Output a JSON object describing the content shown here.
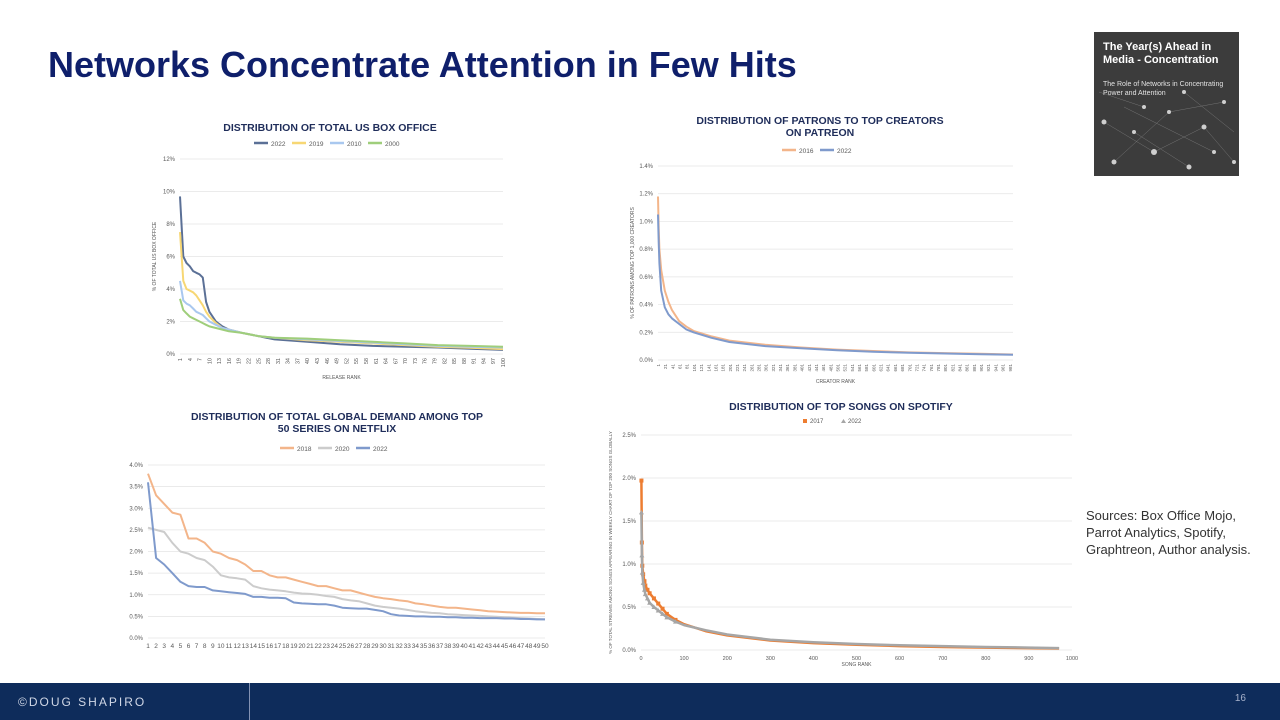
{
  "slide": {
    "title": "Networks Concentrate Attention in Few Hits",
    "sources": "Sources:  Box Office Mojo, Parrot Analytics, Spotify, Graphtreon, Author analysis.",
    "footer_brand": "©DOUG SHAPIRO",
    "page_number": "16"
  },
  "cover": {
    "title": "The Year(s) Ahead in Media - Concentration",
    "subtitle": "The Role of Networks in Concentrating Power and Attention"
  },
  "colors": {
    "title": "#0f1f6b",
    "chart_title": "#1f2d5a",
    "axis_text": "#595959",
    "grid": "#e4e4e4",
    "footer": "#0e2c5b",
    "series_2022": "#7f9acc",
    "series_2022_dark": "#5b7096",
    "series_2019": "#f7d774",
    "series_2010": "#a9c8ef",
    "series_2000": "#9fce7b",
    "series_2016": "#f3b58a",
    "series_2018": "#f3b58a",
    "series_2020": "#cccccc",
    "series_2017": "#ed7d31",
    "series_2022_gray": "#a6a6a6"
  },
  "chart_data": [
    {
      "type": "line",
      "title": "DISTRIBUTION OF TOTAL US BOX OFFICE",
      "xlabel": "RELEASE RANK",
      "ylabel": "% OF TOTAL US BOX OFFICE",
      "ylim": [
        0,
        12
      ],
      "yticks": [
        "0%",
        "2%",
        "4%",
        "6%",
        "8%",
        "10%",
        "12%"
      ],
      "xticks": [
        "1",
        "4",
        "7",
        "10",
        "13",
        "16",
        "19",
        "22",
        "25",
        "28",
        "31",
        "34",
        "37",
        "40",
        "43",
        "46",
        "49",
        "52",
        "55",
        "58",
        "61",
        "64",
        "67",
        "70",
        "73",
        "76",
        "79",
        "82",
        "85",
        "88",
        "91",
        "94",
        "97",
        "100"
      ],
      "xlim": [
        1,
        100
      ],
      "legend_position": "top",
      "series": [
        {
          "name": "2022",
          "x": [
            1,
            2,
            3,
            4,
            5,
            6,
            7,
            8,
            9,
            10,
            12,
            14,
            16,
            20,
            25,
            30,
            40,
            50,
            60,
            70,
            80,
            90,
            100
          ],
          "values": [
            9.7,
            6.0,
            5.6,
            5.4,
            5.1,
            5.0,
            4.9,
            4.7,
            3.2,
            2.6,
            2.0,
            1.7,
            1.5,
            1.3,
            1.1,
            0.9,
            0.75,
            0.6,
            0.5,
            0.45,
            0.4,
            0.32,
            0.25
          ]
        },
        {
          "name": "2019",
          "x": [
            1,
            2,
            3,
            4,
            5,
            6,
            7,
            8,
            9,
            10,
            12,
            14,
            16,
            20,
            25,
            30,
            40,
            50,
            60,
            70,
            80,
            90,
            100
          ],
          "values": [
            7.5,
            4.5,
            4.0,
            3.9,
            3.8,
            3.6,
            3.3,
            3.0,
            2.6,
            2.3,
            1.9,
            1.6,
            1.5,
            1.3,
            1.1,
            1.0,
            0.85,
            0.75,
            0.65,
            0.55,
            0.45,
            0.38,
            0.3
          ]
        },
        {
          "name": "2010",
          "x": [
            1,
            2,
            3,
            4,
            5,
            6,
            7,
            8,
            9,
            10,
            12,
            14,
            16,
            20,
            25,
            30,
            40,
            50,
            60,
            70,
            80,
            90,
            100
          ],
          "values": [
            4.5,
            3.3,
            3.1,
            3.0,
            2.8,
            2.6,
            2.5,
            2.4,
            2.2,
            2.0,
            1.8,
            1.6,
            1.5,
            1.3,
            1.1,
            1.0,
            0.9,
            0.8,
            0.7,
            0.6,
            0.5,
            0.45,
            0.4
          ]
        },
        {
          "name": "2000",
          "x": [
            1,
            2,
            3,
            4,
            5,
            6,
            7,
            8,
            9,
            10,
            12,
            14,
            16,
            20,
            25,
            30,
            40,
            50,
            60,
            70,
            80,
            90,
            100
          ],
          "values": [
            3.4,
            2.7,
            2.5,
            2.3,
            2.2,
            2.1,
            2.0,
            1.9,
            1.8,
            1.7,
            1.6,
            1.5,
            1.4,
            1.3,
            1.1,
            1.0,
            0.95,
            0.85,
            0.75,
            0.65,
            0.55,
            0.5,
            0.45
          ]
        }
      ]
    },
    {
      "type": "line",
      "title": "DISTRIBUTION OF PATRONS TO TOP CREATORS ON PATREON",
      "xlabel": "CREATOR RANK",
      "ylabel": "% OF PATRONS AMONG TOP 1,000 CREATORS",
      "ylim": [
        0,
        1.4
      ],
      "yticks": [
        "0.0%",
        "0.2%",
        "0.4%",
        "0.6%",
        "0.8%",
        "1.0%",
        "1.2%",
        "1.4%"
      ],
      "xticks": [
        "1",
        "21",
        "41",
        "61",
        "81",
        "101",
        "121",
        "141",
        "161",
        "181",
        "201",
        "221",
        "241",
        "261",
        "281",
        "301",
        "321",
        "341",
        "361",
        "381",
        "401",
        "421",
        "441",
        "461",
        "481",
        "501",
        "521",
        "541",
        "561",
        "581",
        "601",
        "621",
        "641",
        "661",
        "681",
        "701",
        "721",
        "741",
        "761",
        "781",
        "801",
        "821",
        "841",
        "861",
        "881",
        "901",
        "921",
        "941",
        "961",
        "981"
      ],
      "xlim": [
        1,
        990
      ],
      "legend_position": "top",
      "series": [
        {
          "name": "2016",
          "x": [
            1,
            3,
            5,
            10,
            20,
            30,
            40,
            60,
            80,
            100,
            150,
            200,
            300,
            400,
            500,
            600,
            700,
            800,
            900,
            990
          ],
          "values": [
            1.18,
            0.95,
            0.8,
            0.65,
            0.5,
            0.42,
            0.36,
            0.28,
            0.24,
            0.21,
            0.17,
            0.14,
            0.11,
            0.09,
            0.075,
            0.065,
            0.055,
            0.05,
            0.045,
            0.04
          ]
        },
        {
          "name": "2022",
          "x": [
            1,
            3,
            5,
            10,
            20,
            30,
            40,
            60,
            80,
            100,
            150,
            200,
            300,
            400,
            500,
            600,
            700,
            800,
            900,
            990
          ],
          "values": [
            1.05,
            0.85,
            0.7,
            0.5,
            0.38,
            0.33,
            0.3,
            0.26,
            0.22,
            0.2,
            0.16,
            0.13,
            0.1,
            0.085,
            0.07,
            0.06,
            0.052,
            0.047,
            0.042,
            0.038
          ]
        }
      ]
    },
    {
      "type": "line",
      "title": "DISTRIBUTION OF TOTAL GLOBAL DEMAND AMONG TOP 50 SERIES ON NETFLIX",
      "xlabel": "",
      "ylabel": "",
      "ylim": [
        0,
        4
      ],
      "yticks": [
        "0.0%",
        "0.5%",
        "1.0%",
        "1.5%",
        "2.0%",
        "2.5%",
        "3.0%",
        "3.5%",
        "4.0%"
      ],
      "xticks": [
        "1",
        "2",
        "3",
        "4",
        "5",
        "6",
        "7",
        "8",
        "9",
        "10",
        "11",
        "12",
        "13",
        "14",
        "15",
        "16",
        "17",
        "18",
        "19",
        "20",
        "21",
        "22",
        "23",
        "24",
        "25",
        "26",
        "27",
        "28",
        "29",
        "30",
        "31",
        "32",
        "33",
        "34",
        "35",
        "36",
        "37",
        "38",
        "39",
        "40",
        "41",
        "42",
        "43",
        "44",
        "45",
        "46",
        "47",
        "48",
        "49",
        "50"
      ],
      "xlim": [
        1,
        50
      ],
      "legend_position": "top",
      "series": [
        {
          "name": "2018",
          "x": [
            1,
            2,
            3,
            4,
            5,
            6,
            7,
            8,
            9,
            10,
            11,
            12,
            13,
            14,
            15,
            16,
            17,
            18,
            19,
            20,
            21,
            22,
            23,
            24,
            25,
            26,
            27,
            28,
            29,
            30,
            31,
            32,
            33,
            34,
            35,
            36,
            37,
            38,
            39,
            40,
            41,
            42,
            43,
            44,
            45,
            46,
            47,
            48,
            49,
            50
          ],
          "values": [
            3.8,
            3.3,
            3.1,
            2.9,
            2.85,
            2.3,
            2.3,
            2.2,
            2.0,
            1.95,
            1.85,
            1.8,
            1.7,
            1.55,
            1.55,
            1.45,
            1.4,
            1.4,
            1.35,
            1.3,
            1.25,
            1.2,
            1.2,
            1.15,
            1.1,
            1.1,
            1.05,
            1.0,
            0.95,
            0.92,
            0.9,
            0.87,
            0.85,
            0.8,
            0.78,
            0.75,
            0.72,
            0.7,
            0.7,
            0.68,
            0.66,
            0.64,
            0.62,
            0.61,
            0.6,
            0.59,
            0.58,
            0.58,
            0.57,
            0.57
          ]
        },
        {
          "name": "2020",
          "x": [
            1,
            2,
            3,
            4,
            5,
            6,
            7,
            8,
            9,
            10,
            11,
            12,
            13,
            14,
            15,
            16,
            17,
            18,
            19,
            20,
            21,
            22,
            23,
            24,
            25,
            26,
            27,
            28,
            29,
            30,
            31,
            32,
            33,
            34,
            35,
            36,
            37,
            38,
            39,
            40,
            41,
            42,
            43,
            44,
            45,
            46,
            47,
            48,
            49,
            50
          ],
          "values": [
            2.55,
            2.5,
            2.45,
            2.2,
            2.0,
            1.95,
            1.85,
            1.8,
            1.65,
            1.45,
            1.4,
            1.38,
            1.35,
            1.2,
            1.15,
            1.12,
            1.1,
            1.08,
            1.05,
            1.03,
            1.02,
            1.0,
            0.97,
            0.95,
            0.9,
            0.87,
            0.85,
            0.8,
            0.75,
            0.72,
            0.7,
            0.68,
            0.65,
            0.62,
            0.6,
            0.58,
            0.57,
            0.55,
            0.54,
            0.53,
            0.52,
            0.51,
            0.5,
            0.49,
            0.48,
            0.47,
            0.46,
            0.45,
            0.44,
            0.43
          ]
        },
        {
          "name": "2022",
          "x": [
            1,
            2,
            3,
            4,
            5,
            6,
            7,
            8,
            9,
            10,
            11,
            12,
            13,
            14,
            15,
            16,
            17,
            18,
            19,
            20,
            21,
            22,
            23,
            24,
            25,
            26,
            27,
            28,
            29,
            30,
            31,
            32,
            33,
            34,
            35,
            36,
            37,
            38,
            39,
            40,
            41,
            42,
            43,
            44,
            45,
            46,
            47,
            48,
            49,
            50
          ],
          "values": [
            3.6,
            1.85,
            1.7,
            1.5,
            1.3,
            1.2,
            1.18,
            1.18,
            1.1,
            1.08,
            1.06,
            1.04,
            1.02,
            0.95,
            0.95,
            0.93,
            0.93,
            0.92,
            0.82,
            0.8,
            0.79,
            0.78,
            0.78,
            0.75,
            0.7,
            0.69,
            0.68,
            0.68,
            0.65,
            0.62,
            0.55,
            0.52,
            0.51,
            0.5,
            0.5,
            0.49,
            0.49,
            0.48,
            0.48,
            0.47,
            0.47,
            0.46,
            0.46,
            0.46,
            0.45,
            0.45,
            0.44,
            0.44,
            0.43,
            0.43
          ]
        }
      ]
    },
    {
      "type": "scatter",
      "title": "DISTRIBUTION OF TOP SONGS ON SPOTIFY",
      "xlabel": "SONG RANK",
      "ylabel": "% OF TOTAL STREAMS AMONG SONGS APPEARING IN WEEKLY CHART OF TOP 200 SONGS GLOBALLY",
      "ylim": [
        0,
        2.5
      ],
      "xlim": [
        0,
        1000
      ],
      "yticks": [
        "0.0%",
        "0.5%",
        "1.0%",
        "1.5%",
        "2.0%",
        "2.5%"
      ],
      "xticks": [
        "0",
        "100",
        "200",
        "300",
        "400",
        "500",
        "600",
        "700",
        "800",
        "900",
        "1000"
      ],
      "legend_position": "top",
      "series": [
        {
          "name": "2017",
          "x": [
            1,
            2,
            3,
            5,
            8,
            10,
            15,
            20,
            30,
            40,
            50,
            60,
            80,
            100,
            150,
            200,
            300,
            400,
            500,
            600,
            700,
            800,
            900,
            970
          ],
          "values": [
            1.97,
            1.25,
            0.98,
            0.88,
            0.8,
            0.75,
            0.7,
            0.66,
            0.6,
            0.54,
            0.48,
            0.42,
            0.35,
            0.3,
            0.22,
            0.17,
            0.11,
            0.08,
            0.06,
            0.045,
            0.035,
            0.028,
            0.022,
            0.018
          ]
        },
        {
          "name": "2022",
          "x": [
            1,
            2,
            3,
            5,
            8,
            10,
            15,
            20,
            30,
            40,
            50,
            60,
            80,
            100,
            150,
            200,
            300,
            400,
            500,
            600,
            700,
            800,
            900,
            970
          ],
          "values": [
            1.6,
            1.1,
            0.9,
            0.78,
            0.7,
            0.65,
            0.6,
            0.55,
            0.5,
            0.46,
            0.42,
            0.38,
            0.33,
            0.29,
            0.23,
            0.18,
            0.12,
            0.09,
            0.07,
            0.055,
            0.045,
            0.035,
            0.028,
            0.022
          ]
        }
      ]
    }
  ]
}
